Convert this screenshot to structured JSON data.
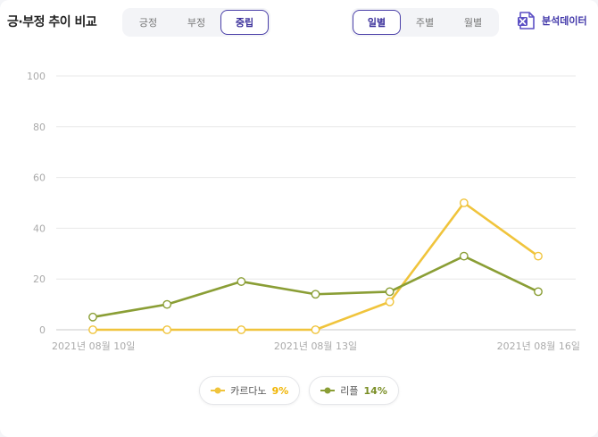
{
  "header": {
    "title": "긍·부정 추이 비교",
    "sentiment_tabs": [
      {
        "label": "긍정",
        "active": false
      },
      {
        "label": "부정",
        "active": false
      },
      {
        "label": "중립",
        "active": true
      }
    ],
    "period_tabs": [
      {
        "label": "일별",
        "active": true
      },
      {
        "label": "주별",
        "active": false
      },
      {
        "label": "월별",
        "active": false
      }
    ],
    "export_label": "분석데이터",
    "export_icon": "excel-file-icon"
  },
  "legend": [
    {
      "name": "카르다노",
      "pct": "9%",
      "color": "#f0c43c"
    },
    {
      "name": "리플",
      "pct": "14%",
      "color": "#8a9e35"
    }
  ],
  "chart_data": {
    "type": "line",
    "x": [
      "2021-08-10",
      "2021-08-11",
      "2021-08-12",
      "2021-08-13",
      "2021-08-14",
      "2021-08-15",
      "2021-08-16"
    ],
    "x_tick_labels": [
      "2021년 08월 10일",
      "2021년 08월 13일",
      "2021년 08월 16일"
    ],
    "x_tick_positions": [
      "2021-08-10",
      "2021-08-13",
      "2021-08-16"
    ],
    "ylim": [
      0,
      100
    ],
    "yticks": [
      0,
      20,
      40,
      60,
      80,
      100
    ],
    "grid": true,
    "legend_position": "bottom-center",
    "series": [
      {
        "name": "카르다노",
        "color": "#f0c43c",
        "values": [
          0,
          0,
          0,
          0,
          11,
          50,
          29
        ]
      },
      {
        "name": "리플",
        "color": "#8a9e35",
        "values": [
          5,
          10,
          19,
          14,
          15,
          29,
          15
        ]
      }
    ]
  }
}
